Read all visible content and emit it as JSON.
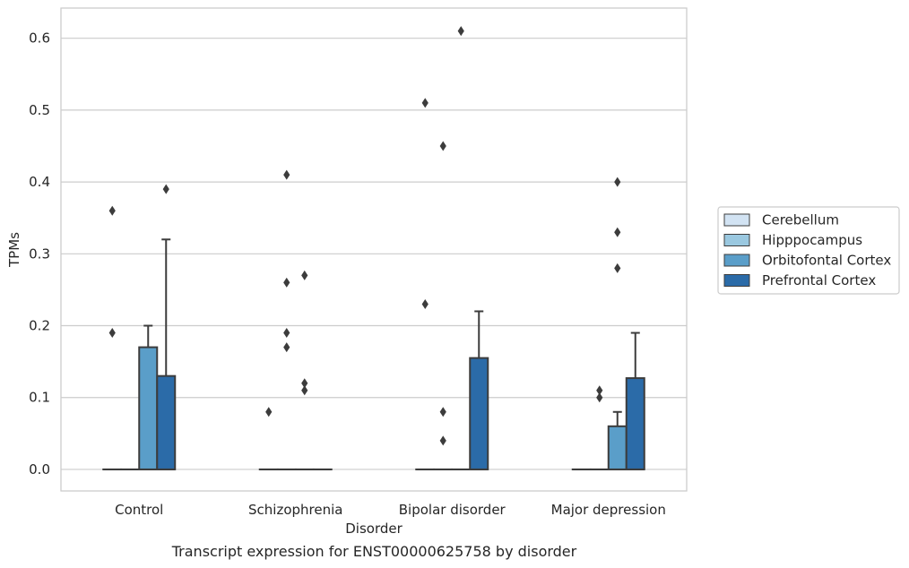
{
  "caption": "Transcript expression for ENST00000625758 by disorder",
  "chart_data": {
    "type": "box",
    "title": "",
    "xlabel": "Disorder",
    "ylabel": "TPMs",
    "ylim": [
      -0.03,
      0.642
    ],
    "yticks": [
      "0.0",
      "0.1",
      "0.2",
      "0.3",
      "0.4",
      "0.5",
      "0.6"
    ],
    "grid": "horizontal",
    "legend_position": "right",
    "categories": [
      "Control",
      "Schizophrenia",
      "Bipolar disorder",
      "Major depression"
    ],
    "series": [
      {
        "name": "Cerebellum",
        "color": "#d2e3f3",
        "boxes": [
          {
            "q1": 0,
            "median": 0,
            "q3": 0,
            "whislo": 0,
            "whishi": 0,
            "fliers": [
              0.36,
              0.19
            ]
          },
          {
            "q1": 0,
            "median": 0,
            "q3": 0,
            "whislo": 0,
            "whishi": 0,
            "fliers": [
              0.08
            ]
          },
          {
            "q1": 0,
            "median": 0,
            "q3": 0,
            "whislo": 0,
            "whishi": 0,
            "fliers": [
              0.51,
              0.23
            ]
          },
          {
            "q1": 0,
            "median": 0,
            "q3": 0,
            "whislo": 0,
            "whishi": 0,
            "fliers": []
          }
        ]
      },
      {
        "name": "Hipppocampus",
        "color": "#9ac8e0",
        "boxes": [
          {
            "q1": 0,
            "median": 0,
            "q3": 0,
            "whislo": 0,
            "whishi": 0,
            "fliers": []
          },
          {
            "q1": 0,
            "median": 0,
            "q3": 0,
            "whislo": 0,
            "whishi": 0,
            "fliers": [
              0.41,
              0.26,
              0.19,
              0.17
            ]
          },
          {
            "q1": 0,
            "median": 0,
            "q3": 0,
            "whislo": 0,
            "whishi": 0,
            "fliers": [
              0.45,
              0.08,
              0.04
            ]
          },
          {
            "q1": 0,
            "median": 0,
            "q3": 0,
            "whislo": 0,
            "whishi": 0,
            "fliers": [
              0.11,
              0.1
            ]
          }
        ]
      },
      {
        "name": "Orbitofontal Cortex",
        "color": "#5a9ec9",
        "boxes": [
          {
            "q1": 0,
            "median": 0,
            "q3": 0.17,
            "whislo": 0,
            "whishi": 0.2,
            "fliers": []
          },
          {
            "q1": 0,
            "median": 0,
            "q3": 0,
            "whislo": 0,
            "whishi": 0,
            "fliers": [
              0.27,
              0.12,
              0.11
            ]
          },
          {
            "q1": 0,
            "median": 0,
            "q3": 0,
            "whislo": 0,
            "whishi": 0,
            "fliers": [
              0.61
            ]
          },
          {
            "q1": 0,
            "median": 0,
            "q3": 0.06,
            "whislo": 0,
            "whishi": 0.08,
            "fliers": [
              0.4,
              0.33,
              0.28
            ]
          }
        ]
      },
      {
        "name": "Prefrontal Cortex",
        "color": "#2b6ba8",
        "boxes": [
          {
            "q1": 0,
            "median": 0,
            "q3": 0.13,
            "whislo": 0,
            "whishi": 0.32,
            "fliers": [
              0.39
            ]
          },
          {
            "q1": 0,
            "median": 0,
            "q3": 0,
            "whislo": 0,
            "whishi": 0,
            "fliers": []
          },
          {
            "q1": 0,
            "median": 0,
            "q3": 0.155,
            "whislo": 0,
            "whishi": 0.22,
            "fliers": []
          },
          {
            "q1": 0,
            "median": 0,
            "q3": 0.127,
            "whislo": 0,
            "whishi": 0.19,
            "fliers": []
          }
        ]
      }
    ]
  }
}
